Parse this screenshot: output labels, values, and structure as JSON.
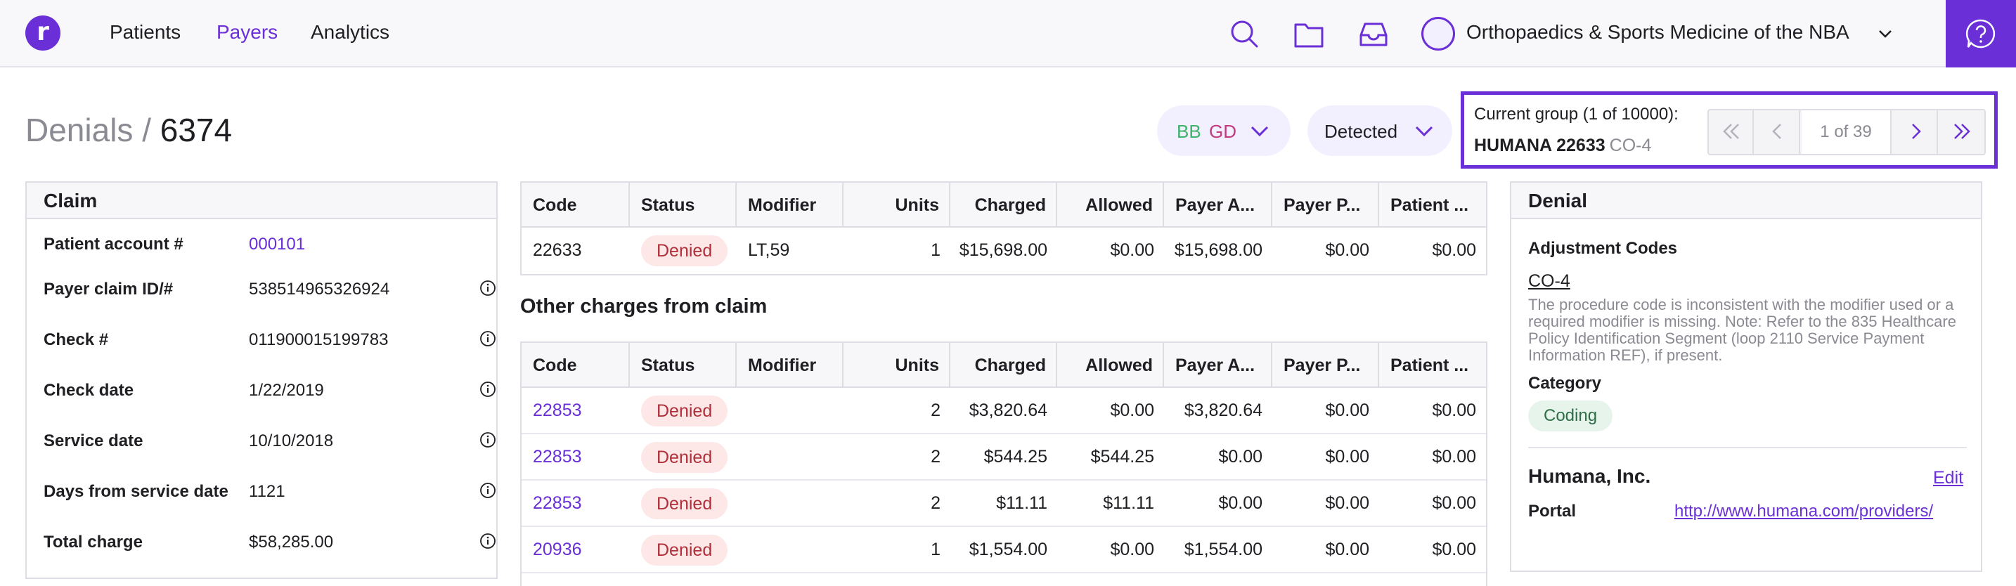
{
  "nav": {
    "logo_letter": "r",
    "items": [
      {
        "label": "Patients",
        "active": false
      },
      {
        "label": "Payers",
        "active": true
      },
      {
        "label": "Analytics",
        "active": false
      }
    ],
    "organization": "Orthopaedics & Sports Medicine of the NBA",
    "icons": [
      "search-icon",
      "folder-icon",
      "inbox-icon",
      "help-icon"
    ],
    "accent_color": "#6a2fd6"
  },
  "page": {
    "breadcrumb_parent": "Denials",
    "separator": "/",
    "denial_id": "6374"
  },
  "filters": {
    "bb": "BB",
    "gd": "GD",
    "status": "Detected"
  },
  "group": {
    "label": "Current group (1 of 10000):",
    "payer": "HUMANA 22633",
    "code": "CO-4",
    "pager": "1 of 39"
  },
  "claim": {
    "title": "Claim",
    "fields": [
      {
        "label": "Patient account #",
        "value": "000101"
      },
      {
        "label": "Payer claim ID/#",
        "value": "538514965326924"
      },
      {
        "label": "Check #",
        "value": "011900015199783"
      },
      {
        "label": "Check date",
        "value": "1/22/2019"
      },
      {
        "label": "Service date",
        "value": "10/10/2018"
      },
      {
        "label": "Days from service date",
        "value": "1121"
      },
      {
        "label": "Total charge",
        "value": "$58,285.00"
      }
    ]
  },
  "columns": [
    "Code",
    "Status",
    "Modifier",
    "Units",
    "Charged",
    "Allowed",
    "Payer A...",
    "Payer P...",
    "Patient ..."
  ],
  "main_table": {
    "rows": [
      {
        "code": "22633",
        "status": "Denied",
        "modifier": "LT,59",
        "units": "1",
        "charged": "$15,698.00",
        "allowed": "$0.00",
        "payer_a": "$15,698.00",
        "payer_p": "$0.00",
        "patient": "$0.00"
      }
    ]
  },
  "other_charges": {
    "title": "Other charges from claim",
    "rows": [
      {
        "code": "22853",
        "status": "Denied",
        "modifier": "",
        "units": "2",
        "charged": "$3,820.64",
        "allowed": "$0.00",
        "payer_a": "$3,820.64",
        "payer_p": "$0.00",
        "patient": "$0.00"
      },
      {
        "code": "22853",
        "status": "Denied",
        "modifier": "",
        "units": "2",
        "charged": "$544.25",
        "allowed": "$544.25",
        "payer_a": "$0.00",
        "payer_p": "$0.00",
        "patient": "$0.00"
      },
      {
        "code": "22853",
        "status": "Denied",
        "modifier": "",
        "units": "2",
        "charged": "$11.11",
        "allowed": "$11.11",
        "payer_a": "$0.00",
        "payer_p": "$0.00",
        "patient": "$0.00"
      },
      {
        "code": "20936",
        "status": "Denied",
        "modifier": "",
        "units": "1",
        "charged": "$1,554.00",
        "allowed": "$0.00",
        "payer_a": "$1,554.00",
        "payer_p": "$0.00",
        "patient": "$0.00"
      }
    ]
  },
  "denial": {
    "title": "Denial",
    "adjustment_label": "Adjustment Codes",
    "code": "CO-4",
    "description": "The procedure code is inconsistent with the modifier used or a required modifier is missing. Note: Refer to the 835 Healthcare Policy Identification Segment (loop 2110 Service Payment Information REF), if present.",
    "category_label": "Category",
    "category": "Coding",
    "payer_name": "Humana, Inc.",
    "edit_label": "Edit",
    "portal_label": "Portal",
    "portal_url": "http://www.humana.com/providers/"
  }
}
